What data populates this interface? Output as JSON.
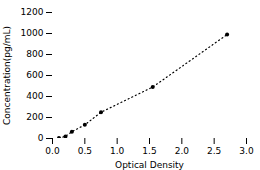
{
  "chart_data": {
    "type": "line",
    "x": [
      0.1,
      0.2,
      0.3,
      0.5,
      0.75,
      1.55,
      2.7
    ],
    "values": [
      5,
      20,
      65,
      130,
      250,
      490,
      990
    ],
    "xlabel": "Optical Density",
    "ylabel": "Concentration(pg/mL)",
    "xlim": [
      0,
      3
    ],
    "ylim": [
      0,
      1200
    ],
    "xticks": [
      {
        "value": 0,
        "label": "0.0"
      },
      0.5,
      {
        "value": 1,
        "label": "1.0"
      },
      1.5,
      {
        "value": 2,
        "label": "2.0"
      },
      2.5,
      {
        "value": 3,
        "label": "3.0"
      }
    ],
    "yticks": [
      0,
      200,
      400,
      600,
      800,
      1000,
      1200
    ],
    "grid": false,
    "marker": "circle",
    "line_style": "dotted"
  }
}
